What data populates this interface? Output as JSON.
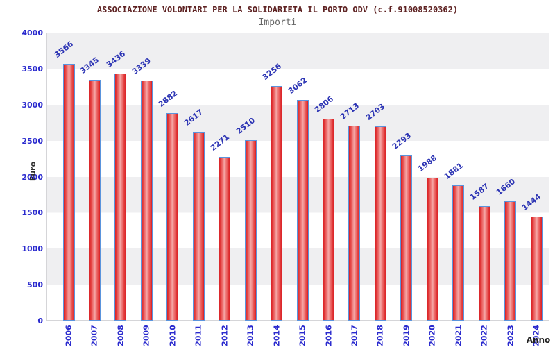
{
  "header": {
    "title": "ASSOCIAZIONE VOLONTARI PER LA SOLIDARIETA IL PORTO ODV (c.f.91008520362)",
    "subtitle": "Importi"
  },
  "chart_data": {
    "type": "bar",
    "title": "ASSOCIAZIONE VOLONTARI PER LA SOLIDARIETA IL PORTO ODV (c.f.91008520362)",
    "subtitle": "Importi",
    "xlabel": "Anno",
    "ylabel": "Euro",
    "categories": [
      "2006",
      "2007",
      "2008",
      "2009",
      "2010",
      "2011",
      "2012",
      "2013",
      "2014",
      "2015",
      "2016",
      "2017",
      "2018",
      "2019",
      "2020",
      "2021",
      "2022",
      "2023",
      "2024"
    ],
    "values": [
      3566,
      3345,
      3436,
      3339,
      2882,
      2617,
      2271,
      2510,
      3256,
      3062,
      2806,
      2713,
      2703,
      2293,
      1988,
      1881,
      1587,
      1660,
      1444
    ],
    "ylim": [
      0,
      4000
    ],
    "yticks": [
      0,
      500,
      1000,
      1500,
      2000,
      2500,
      3000,
      3500,
      4000
    ],
    "grid": "alternating horizontal bands every 500",
    "legend": false,
    "data_labels": "above bars, rotated, blue"
  },
  "colors": {
    "bar_fill_edge": "#d92127",
    "bar_fill_center": "#f6a8a7",
    "bar_border": "#5a94dd",
    "axis_tick_label": "#2a2ace",
    "value_label": "#2c34b4",
    "band_gray": "#efeff1",
    "band_white": "#ffffff",
    "plot_border": "#d5d5d8",
    "title_color": "#5e2222",
    "subtitle_color": "#666666",
    "axis_title_color": "#2d2d2d"
  }
}
